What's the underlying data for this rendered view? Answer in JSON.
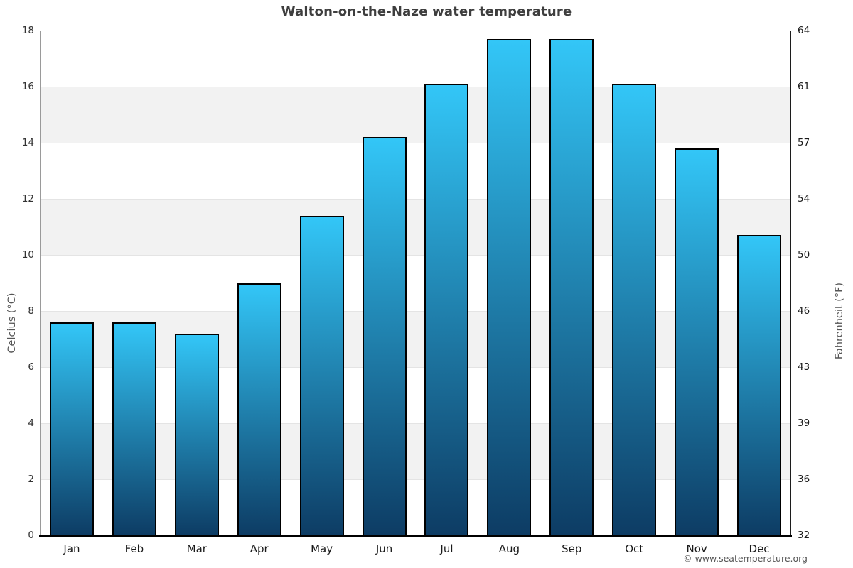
{
  "title": "Walton-on-the-Naze water temperature",
  "footer": "© www.seatemperature.org",
  "chart_data": {
    "type": "bar",
    "title": "Walton-on-the-Naze water temperature",
    "categories": [
      "Jan",
      "Feb",
      "Mar",
      "Apr",
      "May",
      "Jun",
      "Jul",
      "Aug",
      "Sep",
      "Oct",
      "Nov",
      "Dec"
    ],
    "values_celsius": [
      7.6,
      7.6,
      7.2,
      9.0,
      11.4,
      14.2,
      16.1,
      17.7,
      17.7,
      16.1,
      13.8,
      10.7
    ],
    "ylabel_left": "Celcius (°C)",
    "ylabel_right": "Fahrenheit (°F)",
    "yticks_celsius": [
      0,
      2,
      4,
      6,
      8,
      10,
      12,
      14,
      16,
      18
    ],
    "yticks_fahrenheit_labels": [
      "32",
      "36",
      "39",
      "43",
      "46",
      "50",
      "54",
      "57",
      "61",
      "64"
    ],
    "ylim": [
      0,
      18
    ],
    "grid": true,
    "legend": "none",
    "colors": {
      "bar_top": "#33c6f7",
      "bar_bottom": "#0d3c64",
      "bar_border": "#000000",
      "plot_band": "#f2f2f2",
      "gridline": "#e4e4e4",
      "title_text": "#3e3e3e",
      "axis_title_text": "#555555"
    }
  }
}
